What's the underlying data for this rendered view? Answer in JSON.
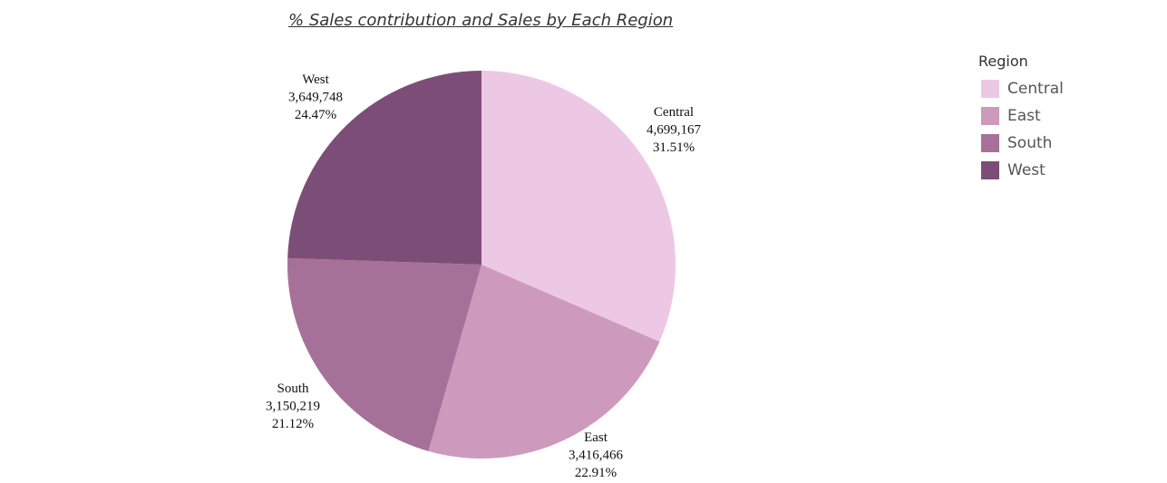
{
  "chart_data": {
    "type": "pie",
    "title": "% Sales contribution and Sales by Each Region",
    "legend_title": "Region",
    "legend_position": "top-right",
    "start_angle_deg": 0,
    "direction": "clockwise",
    "slices": [
      {
        "category": "Central",
        "value": 4699167,
        "value_label": "4,699,167",
        "percent_label": "31.51%",
        "color": "#ecc8e5"
      },
      {
        "category": "East",
        "value": 3416466,
        "value_label": "3,416,466",
        "percent_label": "22.91%",
        "color": "#cd9abd"
      },
      {
        "category": "South",
        "value": 3150219,
        "value_label": "3,150,219",
        "percent_label": "21.12%",
        "color": "#a67198"
      },
      {
        "category": "West",
        "value": 3649748,
        "value_label": "3,649,748",
        "percent_label": "24.47%",
        "color": "#7c4e77"
      }
    ]
  }
}
